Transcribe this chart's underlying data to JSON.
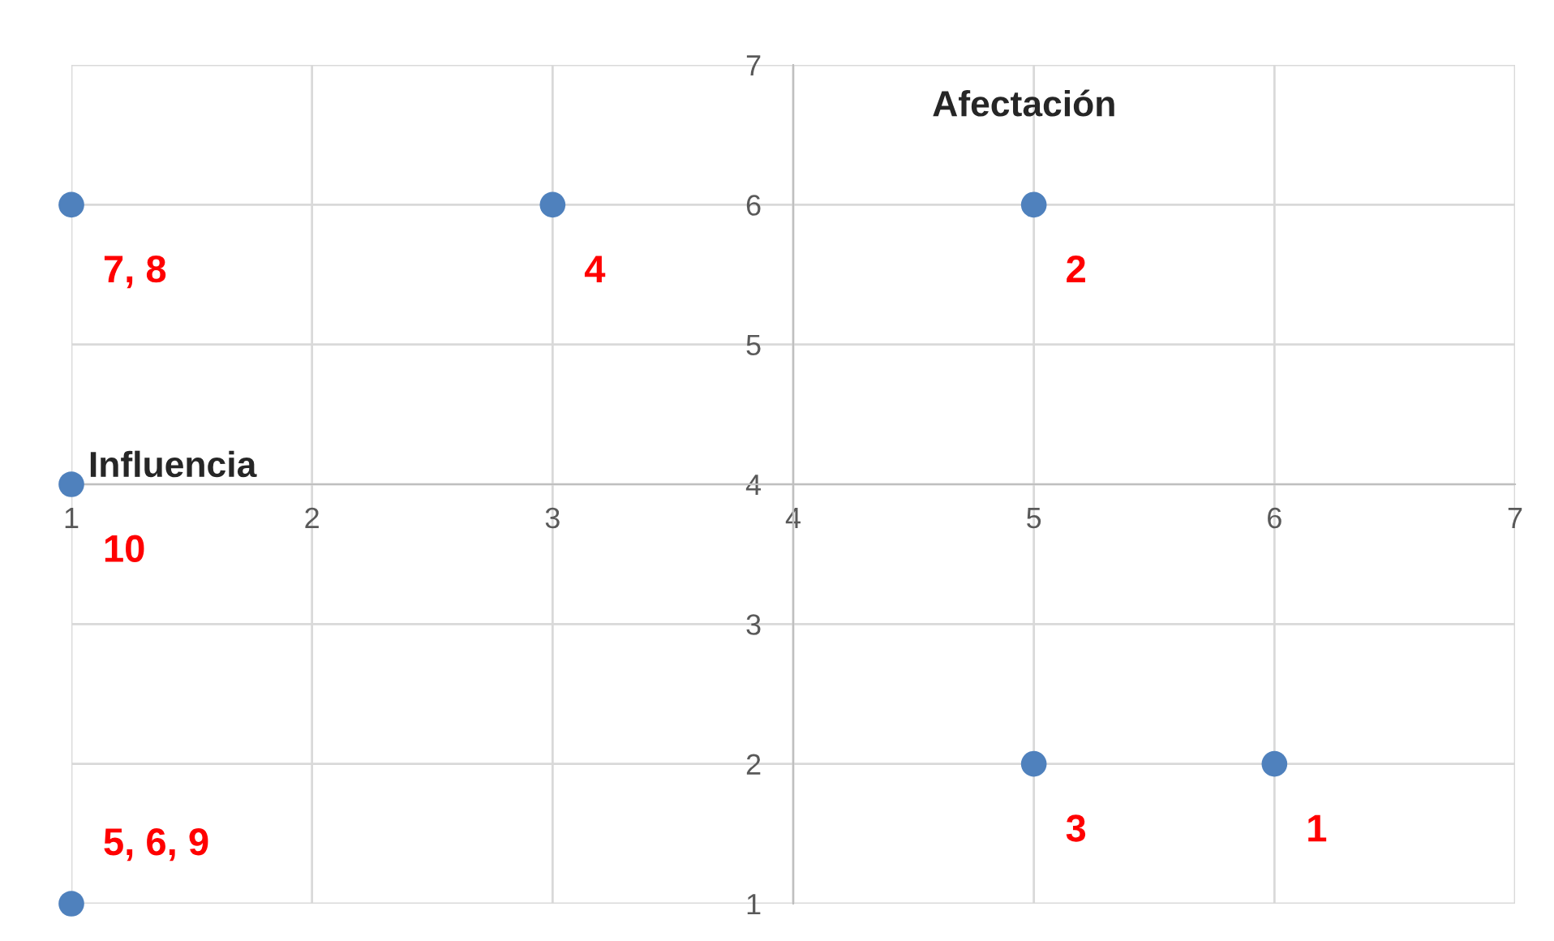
{
  "chart_data": {
    "type": "scatter",
    "xlabel": "Influencia",
    "ylabel": "Afectación",
    "series": [
      {
        "name": "7, 8",
        "color": "#4f81bd",
        "x": [
          1
        ],
        "values": [
          6
        ]
      },
      {
        "name": "4",
        "color": "#4f81bd",
        "x": [
          3
        ],
        "values": [
          6
        ]
      },
      {
        "name": "2",
        "color": "#4f81bd",
        "x": [
          5
        ],
        "values": [
          6
        ]
      },
      {
        "name": "10",
        "color": "#4f81bd",
        "x": [
          1
        ],
        "values": [
          4
        ]
      },
      {
        "name": "3",
        "color": "#4f81bd",
        "x": [
          5
        ],
        "values": [
          2
        ]
      },
      {
        "name": "1",
        "color": "#4f81bd",
        "x": [
          6
        ],
        "values": [
          2
        ]
      },
      {
        "name": "5, 6, 9",
        "color": "#4f81bd",
        "x": [
          1
        ],
        "values": [
          1
        ]
      }
    ],
    "marker": "circle",
    "xlim": [
      1,
      7
    ],
    "ylim": [
      1,
      7
    ],
    "xticks": [
      1,
      2,
      3,
      4,
      5,
      6,
      7
    ],
    "yticks": [
      1,
      2,
      3,
      4,
      5,
      6,
      7
    ],
    "grid": true
  }
}
